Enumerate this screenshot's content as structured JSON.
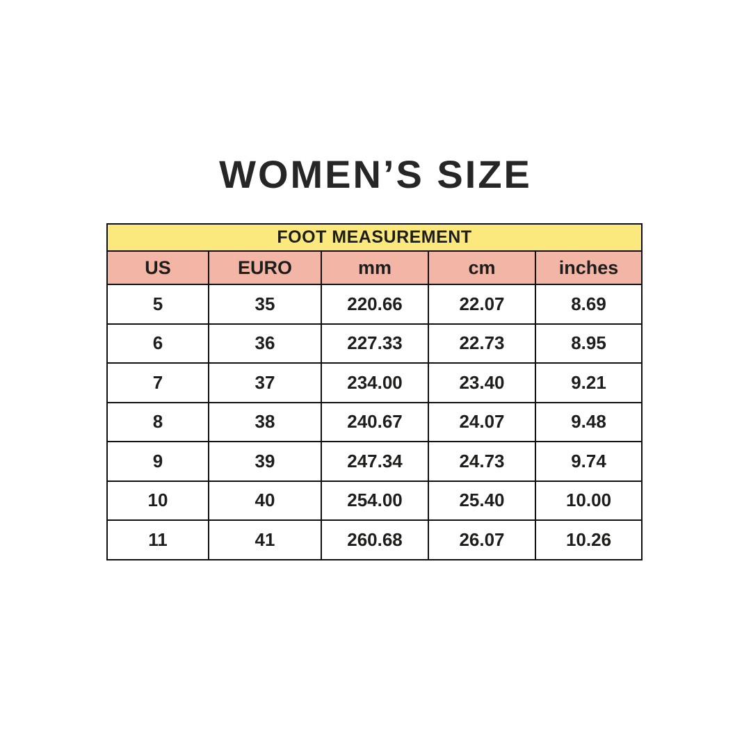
{
  "title": "WOMEN’S SIZE",
  "colors": {
    "background": "#ffffff",
    "banner_yellow": "#fbe97e",
    "header_pink": "#f3b5a5",
    "border_black": "#0f0f0f",
    "text_dark": "#1d1d1b"
  },
  "chart_data": {
    "type": "table",
    "title": "WOMEN’S SIZE",
    "banner": "FOOT MEASUREMENT",
    "columns": [
      "US",
      "EURO",
      "mm",
      "cm",
      "inches"
    ],
    "rows": [
      [
        "5",
        "35",
        "220.66",
        "22.07",
        "8.69"
      ],
      [
        "6",
        "36",
        "227.33",
        "22.73",
        "8.95"
      ],
      [
        "7",
        "37",
        "234.00",
        "23.40",
        "9.21"
      ],
      [
        "8",
        "38",
        "240.67",
        "24.07",
        "9.48"
      ],
      [
        "9",
        "39",
        "247.34",
        "24.73",
        "9.74"
      ],
      [
        "10",
        "40",
        "254.00",
        "25.40",
        "10.00"
      ],
      [
        "11",
        "41",
        "260.68",
        "26.07",
        "10.26"
      ]
    ]
  }
}
